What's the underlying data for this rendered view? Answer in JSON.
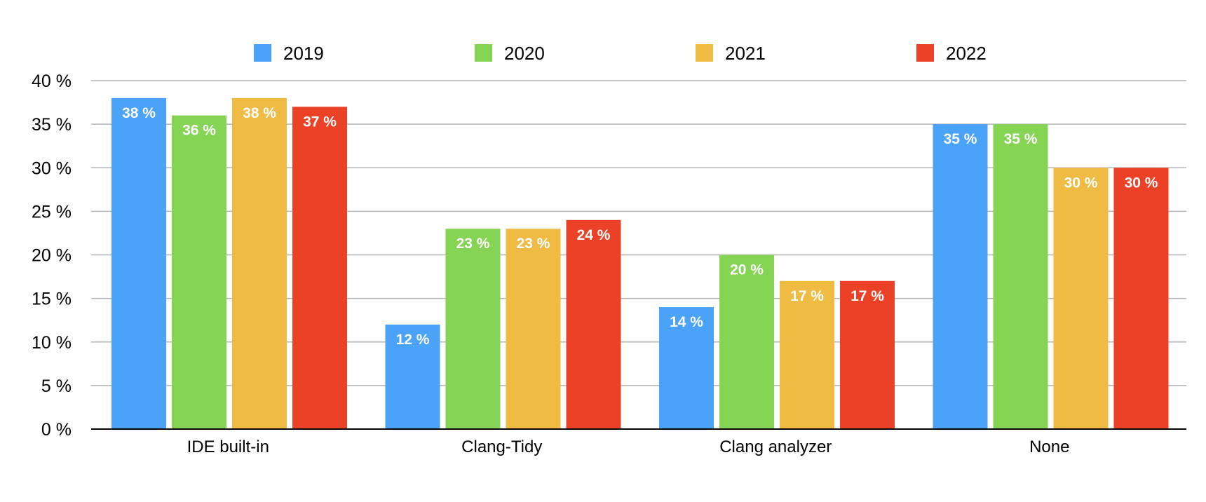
{
  "chart_data": {
    "type": "bar",
    "categories": [
      "IDE built-in",
      "Clang-Tidy",
      "Clang analyzer",
      "None"
    ],
    "series": [
      {
        "name": "2019",
        "color": "#4aa3f7",
        "values": [
          38,
          12,
          14,
          35
        ],
        "labels": [
          "38 %",
          "12 %",
          "14 %",
          "35 %"
        ]
      },
      {
        "name": "2020",
        "color": "#85d454",
        "values": [
          36,
          23,
          20,
          35
        ],
        "labels": [
          "36 %",
          "23 %",
          "20 %",
          "35 %"
        ]
      },
      {
        "name": "2021",
        "color": "#efbb42",
        "values": [
          38,
          23,
          17,
          30
        ],
        "labels": [
          "38 %",
          "23 %",
          "17 %",
          "30 %"
        ]
      },
      {
        "name": "2022",
        "color": "#eb4227",
        "values": [
          37,
          24,
          17,
          30
        ],
        "labels": [
          "37 %",
          "24 %",
          "17 %",
          "30 %"
        ]
      }
    ],
    "y_ticks": [
      0,
      5,
      10,
      15,
      20,
      25,
      30,
      35,
      40
    ],
    "y_tick_labels": [
      "0 %",
      "5 %",
      "10 %",
      "15 %",
      "20 %",
      "25 %",
      "30 %",
      "35 %",
      "40 %"
    ],
    "ylim": [
      0,
      40
    ],
    "title": "",
    "xlabel": "",
    "ylabel": "",
    "grid": true,
    "legend_position": "top"
  }
}
